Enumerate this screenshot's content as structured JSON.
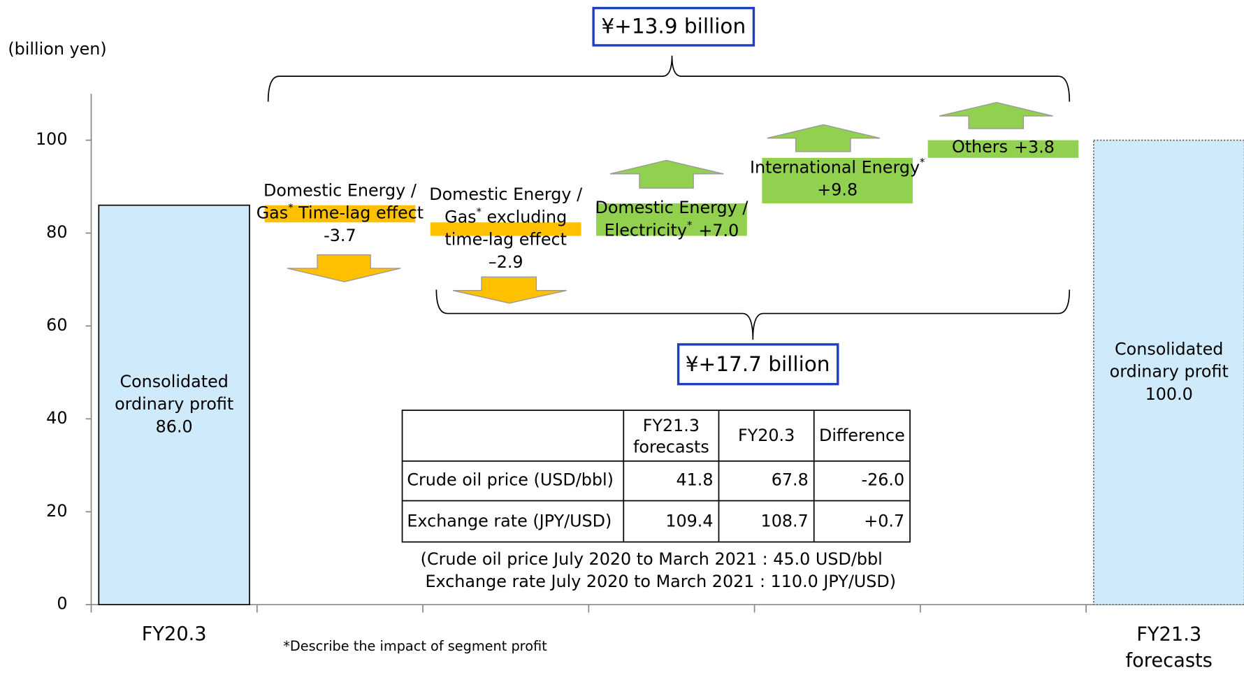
{
  "chart_data": {
    "type": "waterfall",
    "y_label": "(billion yen)",
    "ylim": [
      0,
      110
    ],
    "yticks": [
      0,
      20,
      40,
      60,
      80,
      100
    ],
    "categories": [
      "FY20.3",
      null,
      null,
      null,
      null,
      null,
      "FY21.3 forecasts"
    ],
    "measures": [
      "total",
      "relative",
      "relative",
      "relative",
      "relative",
      "relative",
      "total"
    ],
    "values": [
      86.0,
      -3.7,
      -2.9,
      7.0,
      9.8,
      3.8,
      100.0
    ],
    "value_labels": [
      "86.0",
      "-3.7",
      "–2.9",
      "+7.0",
      "+9.8",
      "+3.8",
      "100.0"
    ],
    "bar_label_lines": [
      [
        "Consolidated",
        "ordinary profit"
      ],
      [
        "Domestic Energy /",
        "Gas* Time-lag effect"
      ],
      [
        "Domestic Energy /",
        "Gas* excluding",
        "time-lag effect"
      ],
      [
        "Domestic Energy /",
        "Electricity*"
      ],
      [
        "International Energy*"
      ],
      [
        "Others"
      ],
      [
        "Consolidated",
        "ordinary profit"
      ]
    ],
    "colors": {
      "total": "#cfeafb",
      "decrease": "#ffc000",
      "increase": "#92d050"
    },
    "annotations": [
      "¥+13.9 billion",
      "¥+17.7 billion"
    ],
    "table": {
      "columns": [
        "FY21.3 forecasts",
        "FY20.3",
        "Difference"
      ],
      "rows": [
        [
          "Crude oil price (USD/bbl)",
          "41.8",
          "67.8",
          "-26.0"
        ],
        [
          "Exchange rate (JPY/USD)",
          "109.4",
          "108.7",
          "+0.7"
        ]
      ]
    },
    "notes": [
      "(Crude oil price July 2020 to March 2021 : 45.0 USD/bbl",
      "Exchange rate July 2020 to March 2021 : 110.0 JPY/USD)"
    ],
    "footnote": "*Describe the impact of segment profit"
  }
}
